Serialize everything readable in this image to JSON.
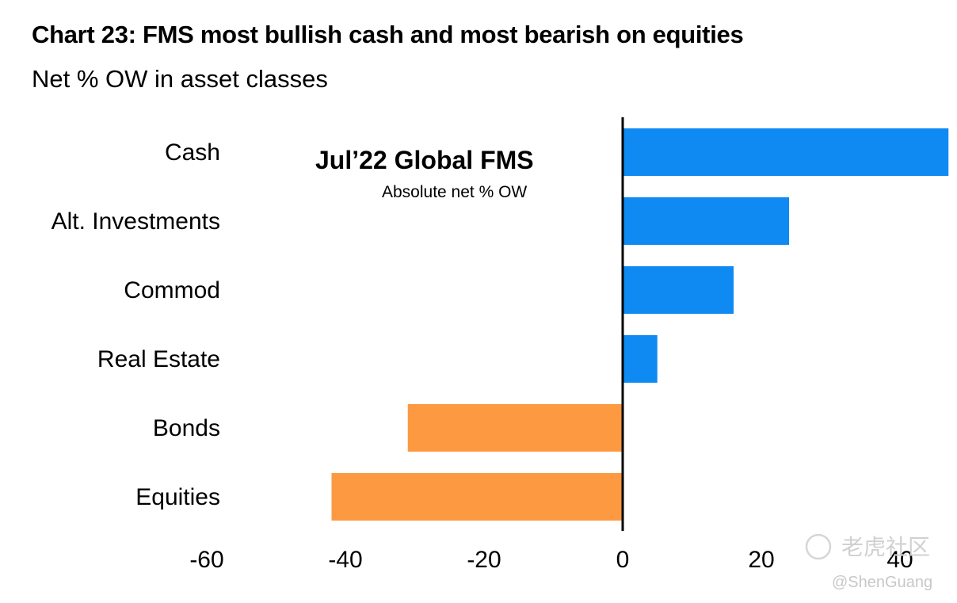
{
  "header": {
    "title": "Chart 23: FMS most bullish cash and most bearish on equities",
    "subtitle": "Net % OW in asset classes"
  },
  "annotation": {
    "title": "Jul’22 Global FMS",
    "subtitle": "Absolute net % OW"
  },
  "watermark": {
    "text": "老虎社区",
    "handle": "@ShenGuang"
  },
  "chart_data": {
    "type": "bar",
    "orientation": "horizontal",
    "categories": [
      "Cash",
      "Alt. Investments",
      "Commod",
      "Real Estate",
      "Bonds",
      "Equities"
    ],
    "values": [
      47,
      24,
      16,
      5,
      -31,
      -42
    ],
    "colors": {
      "positive": "#0f8af2",
      "negative": "#fd9a41"
    },
    "xlim": [
      -60,
      47
    ],
    "xticks": [
      -60,
      -40,
      -20,
      0,
      20,
      40
    ],
    "title": "Chart 23: FMS most bullish cash and most bearish on equities",
    "subtitle": "Net % OW in asset classes",
    "grid": false,
    "legend": "none"
  }
}
